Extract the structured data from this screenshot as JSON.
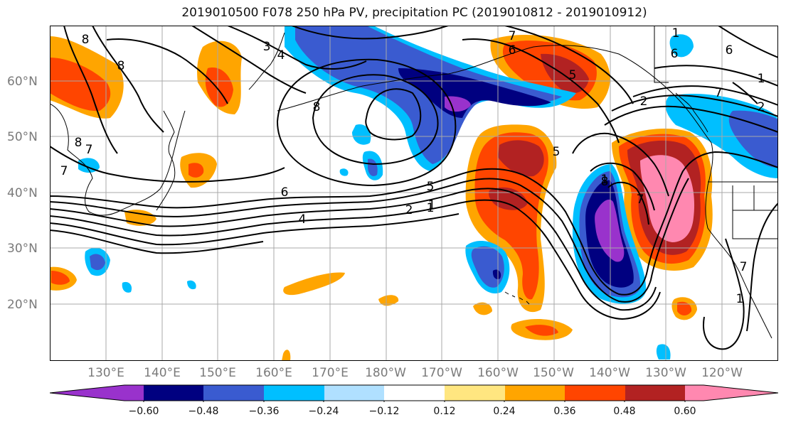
{
  "title": "2019010500 F078 250 hPa PV, precipitation PC (2019010812 - 2019010912)",
  "lat_labels": [
    "60°N",
    "50°N",
    "40°N",
    "30°N",
    "20°N"
  ],
  "lon_labels": [
    "130°E",
    "140°E",
    "150°E",
    "160°E",
    "170°E",
    "180°W",
    "170°W",
    "160°W",
    "150°W",
    "140°W",
    "130°W",
    "120°W"
  ],
  "colorbar": {
    "colors": [
      "#9932cc",
      "#000080",
      "#3a5bd0",
      "#00bfff",
      "#b0e0ff",
      "#ffffff",
      "#ffe680",
      "#ffa500",
      "#ff4500",
      "#b22222",
      "#ff88b0"
    ],
    "tick_labels": [
      "−0.60",
      "−0.48",
      "−0.36",
      "−0.24",
      "−0.12",
      "0.12",
      "0.24",
      "0.36",
      "0.48",
      "0.60"
    ]
  },
  "pv_contour_labels": [
    "8",
    "8",
    "8",
    "7",
    "6",
    "5",
    "4",
    "3",
    "2",
    "1",
    "1",
    "8",
    "4",
    "6",
    "5",
    "2",
    "1",
    "8",
    "7",
    "1",
    "6",
    "7",
    "6",
    "7",
    "1",
    "2",
    "7",
    "1",
    "5",
    "7"
  ],
  "colors": {
    "contour": "#000000",
    "grid": "#a8a8a8",
    "axis_label": "#7a7a7a"
  }
}
